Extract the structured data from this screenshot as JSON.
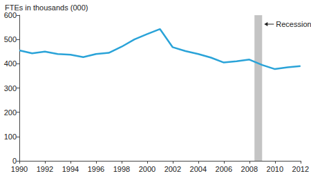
{
  "chart_data": {
    "type": "line",
    "y_label": "FTEs in thousands (000)",
    "x": [
      1990,
      1991,
      1992,
      1993,
      1994,
      1995,
      1996,
      1997,
      1998,
      1999,
      2000,
      2001,
      2002,
      2003,
      2004,
      2005,
      2006,
      2007,
      2008,
      2009,
      2010,
      2011,
      2012
    ],
    "values": [
      455,
      443,
      450,
      440,
      437,
      427,
      440,
      445,
      470,
      500,
      522,
      543,
      468,
      452,
      440,
      425,
      405,
      410,
      417,
      395,
      378,
      385,
      390
    ],
    "color": "#2aa3d8",
    "xlim": [
      1990,
      2012
    ],
    "xticks": [
      1990,
      1992,
      1994,
      1996,
      1998,
      2000,
      2002,
      2004,
      2006,
      2008,
      2010,
      2012
    ],
    "ylim": [
      0,
      600
    ],
    "yticks": [
      0,
      100,
      200,
      300,
      400,
      500,
      600
    ],
    "grid": false,
    "annotations": [
      {
        "text": "Recession",
        "x_range": [
          2008.4,
          2009.0
        ],
        "color": "#c4c4c4"
      }
    ]
  }
}
